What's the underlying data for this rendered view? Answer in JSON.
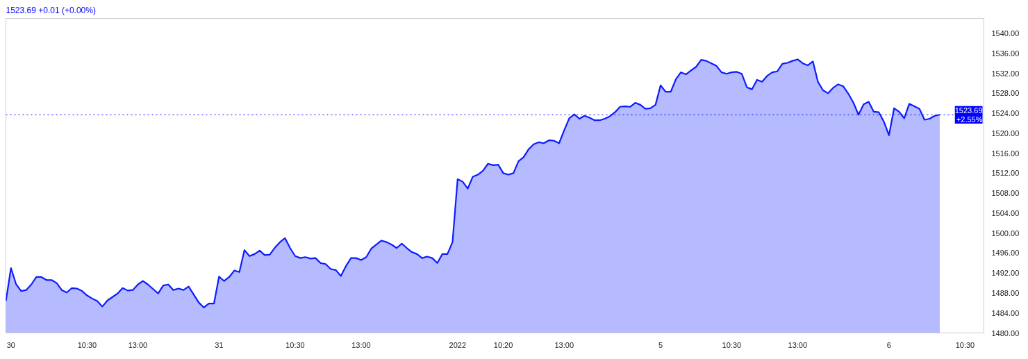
{
  "chart_data": {
    "type": "area",
    "title": "1523.69  +0.01 (+0.00%)",
    "categories": [
      null,
      "30",
      null,
      null,
      null,
      null,
      null,
      null,
      null,
      null,
      null,
      null,
      null,
      null,
      null,
      null,
      "10:30",
      null,
      null,
      null,
      null,
      null,
      null,
      null,
      null,
      null,
      "13:00",
      null,
      null,
      null,
      null,
      null,
      null,
      null,
      null,
      null,
      null,
      null,
      null,
      null,
      null,
      null,
      "31",
      null,
      null,
      null,
      null,
      null,
      null,
      null,
      null,
      null,
      null,
      null,
      null,
      null,
      null,
      "10:30",
      null,
      null,
      null,
      null,
      null,
      null,
      null,
      null,
      null,
      null,
      null,
      null,
      "13:00",
      null,
      null,
      null,
      null,
      null,
      null,
      null,
      null,
      null,
      null,
      null,
      null,
      null,
      null,
      null,
      null,
      null,
      null,
      "2022",
      null,
      null,
      null,
      null,
      null,
      null,
      null,
      null,
      "10:20",
      null,
      null,
      null,
      null,
      null,
      null,
      null,
      null,
      null,
      null,
      null,
      "13:00",
      null,
      null,
      null,
      null,
      null,
      null,
      null,
      null,
      null,
      null,
      null,
      null,
      null,
      null,
      null,
      null,
      null,
      null,
      "5",
      null,
      null,
      null,
      null,
      null,
      null,
      null,
      null,
      null,
      null,
      null,
      null,
      null,
      "10:30",
      null,
      null,
      null,
      null,
      null,
      null,
      null,
      null,
      null,
      null,
      null,
      null,
      "13:00",
      null,
      null,
      null,
      null,
      null,
      null,
      null,
      null,
      null,
      null,
      null,
      null,
      null,
      null,
      null,
      null,
      null,
      "6",
      null,
      null,
      null,
      null,
      null,
      null,
      null,
      null,
      null,
      null,
      null,
      null,
      null,
      null,
      "10:30",
      null,
      null,
      null
    ],
    "series": [
      {
        "color": "#0d1cff",
        "values": [
          1486.4,
          1493.0,
          1489.8,
          1488.4,
          1488.6,
          1489.7,
          1491.2,
          1491.2,
          1490.6,
          1490.6,
          1490.0,
          1488.6,
          1488.1,
          1489.0,
          1488.9,
          1488.4,
          1487.5,
          1486.9,
          1486.4,
          1485.3,
          1486.5,
          1487.2,
          1487.9,
          1489.0,
          1488.5,
          1488.6,
          1489.7,
          1490.4,
          1489.7,
          1488.8,
          1487.9,
          1489.5,
          1489.7,
          1488.6,
          1488.9,
          1488.6,
          1489.3,
          1487.7,
          1486.1,
          1485.1,
          1485.9,
          1485.9,
          1491.3,
          1490.4,
          1491.2,
          1492.5,
          1492.2,
          1496.6,
          1495.4,
          1495.8,
          1496.5,
          1495.6,
          1495.7,
          1497.1,
          1498.2,
          1499.0,
          1497.0,
          1495.4,
          1495.0,
          1495.2,
          1494.9,
          1495.0,
          1494.0,
          1493.8,
          1492.8,
          1492.6,
          1491.4,
          1493.4,
          1495.0,
          1495.0,
          1494.6,
          1495.2,
          1496.9,
          1497.7,
          1498.5,
          1498.2,
          1497.7,
          1497.0,
          1497.9,
          1497.0,
          1496.2,
          1495.8,
          1495.0,
          1495.3,
          1495.0,
          1494.0,
          1495.8,
          1495.8,
          1498.2,
          1510.8,
          1510.3,
          1508.9,
          1511.3,
          1511.7,
          1512.5,
          1513.9,
          1513.6,
          1513.7,
          1512.0,
          1511.7,
          1512.0,
          1514.4,
          1515.2,
          1516.8,
          1517.8,
          1518.2,
          1518.0,
          1518.6,
          1518.5,
          1518.0,
          1520.6,
          1523.0,
          1523.8,
          1522.9,
          1523.5,
          1523.1,
          1522.6,
          1522.6,
          1522.9,
          1523.4,
          1524.2,
          1525.3,
          1525.4,
          1525.3,
          1526.1,
          1525.7,
          1524.9,
          1525.0,
          1525.7,
          1529.6,
          1528.3,
          1528.3,
          1530.8,
          1532.2,
          1531.8,
          1532.6,
          1533.3,
          1534.7,
          1534.5,
          1534.0,
          1533.5,
          1532.2,
          1531.9,
          1532.2,
          1532.3,
          1531.9,
          1529.2,
          1528.8,
          1530.7,
          1530.3,
          1531.5,
          1532.2,
          1532.4,
          1533.9,
          1534.1,
          1534.5,
          1534.8,
          1534.0,
          1533.6,
          1534.4,
          1530.3,
          1528.6,
          1528.0,
          1529.1,
          1529.8,
          1529.4,
          1527.9,
          1526.1,
          1523.7,
          1525.8,
          1526.3,
          1524.3,
          1524.2,
          1522.3,
          1519.6,
          1525.0,
          1524.3,
          1523.0,
          1525.9,
          1525.4,
          1524.9,
          1522.7,
          1522.9,
          1523.5,
          1523.7,
          null,
          null,
          null,
          null,
          null,
          null,
          null,
          null
        ]
      }
    ],
    "ylim": [
      1480,
      1543
    ],
    "yticks": [
      {
        "value": 1480,
        "label": "1480.00"
      },
      {
        "value": 1484,
        "label": "1484.00"
      },
      {
        "value": 1488,
        "label": "1488.00"
      },
      {
        "value": 1492,
        "label": "1492.00"
      },
      {
        "value": 1496,
        "label": "1496.00"
      },
      {
        "value": 1500,
        "label": "1500.00"
      },
      {
        "value": 1504,
        "label": "1504.00"
      },
      {
        "value": 1508,
        "label": "1508.00"
      },
      {
        "value": 1512,
        "label": "1512.00"
      },
      {
        "value": 1516,
        "label": "1516.00"
      },
      {
        "value": 1520,
        "label": "1520.00"
      },
      {
        "value": 1524,
        "label": "1524.00"
      },
      {
        "value": 1528,
        "label": "1528.00"
      },
      {
        "value": 1532,
        "label": "1532.00"
      },
      {
        "value": 1536,
        "label": "1536.00"
      },
      {
        "value": 1540,
        "label": "1540.00"
      }
    ],
    "ref_lines": [
      {
        "axis": "y",
        "value": 1523.69,
        "label": "1523.69\n+2.55%",
        "color": "#0000ff",
        "line_style": "dotted"
      }
    ],
    "grid": false,
    "line_style": "solid"
  }
}
